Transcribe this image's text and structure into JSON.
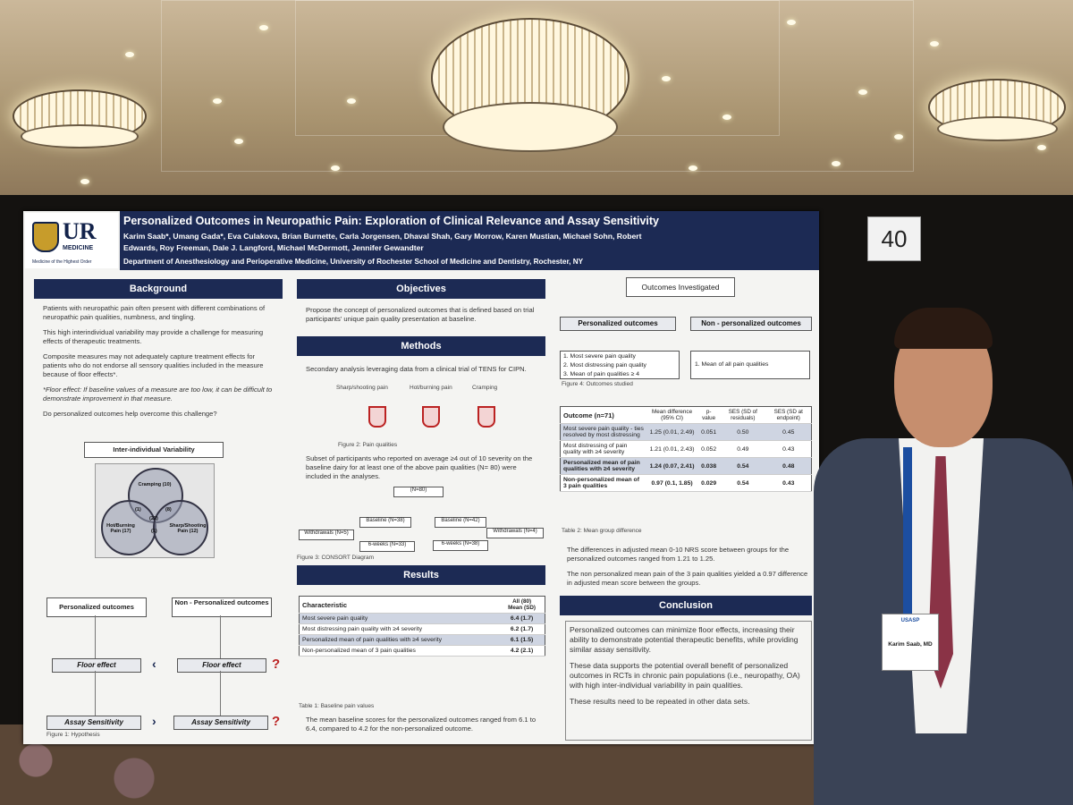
{
  "poster": {
    "title": "Personalized Outcomes in Neuropathic Pain: Exploration of Clinical Relevance and Assay Sensitivity",
    "authors": "Karim Saab*, Umang Gada*, Eva Culakova, Brian Burnette, Carla Jorgensen, Dhaval Shah, Gary Morrow, Karen Mustian, Michael Sohn, Robert Edwards, Roy Freeman, Dale J. Langford, Michael McDermott, Jennifer Gewandter",
    "department": "Department of Anesthesiology and Perioperative Medicine, University of Rochester School of Medicine and Dentistry, Rochester, NY",
    "logo": {
      "mark": "UR",
      "name": "MEDICINE",
      "motto": "Medicine of the Highest Order"
    },
    "board_number": "40",
    "background": {
      "heading": "Background",
      "bullets": [
        "Patients with neuropathic pain often present with different combinations of neuropathic pain qualities, numbness, and tingling.",
        "This high interindividual variability may provide a challenge for measuring effects of therapeutic treatments.",
        "Composite measures may not adequately capture treatment effects for patients who do not endorse all sensory qualities included in the measure because of floor effects*.",
        "*Floor effect: If baseline values of a measure are too low, it can be difficult to demonstrate improvement in that measure.",
        "Do personalized outcomes help overcome this challenge?"
      ]
    },
    "hypothesis": {
      "venn_title": "Inter-individual Variability",
      "venn_labels": [
        "Cramping (10)",
        "Hot/Burning Pain (17)",
        "Sharp/Shooting Pain (12)"
      ],
      "venn_counts": [
        "(1)",
        "(8)",
        "(22)",
        "(1)"
      ],
      "left_outcome": "Personalized outcomes",
      "right_outcome": "Non - Personalized outcomes",
      "floor_left": "Floor effect",
      "floor_right": "Floor effect",
      "assay_left": "Assay Sensitivity",
      "assay_right": "Assay Sensitivity",
      "question_mark": "?",
      "caption": "Figure 1: Hypothesis"
    },
    "objectives": {
      "heading": "Objectives",
      "bullets": [
        "Propose the concept of personalized outcomes that is defined based on trial participants' unique pain quality presentation at baseline."
      ]
    },
    "methods": {
      "heading": "Methods",
      "bullets": [
        "Secondary analysis leveraging data from a clinical trial of TENS for CIPN.",
        "Subset of participants who reported on average ≥4 out of 10 severity on the baseline dairy for at least one of the above pain qualities (N= 80) were included in the analyses."
      ],
      "pain_labels": [
        "Sharp/shooting pain",
        "Hot/burning pain",
        "Cramping"
      ],
      "fig2_caption": "Figure 2: Pain qualities",
      "consort": {
        "top": "(N=80)",
        "baseline_left": "Baseline (N=38)",
        "baseline_right": "Baseline (N=42)",
        "withdraw_left": "Withdrawals (N=5)",
        "withdraw_right": "Withdrawals (N=4)",
        "week_left": "6-weeks (N=33)",
        "week_right": "6-weeks (N=38)",
        "caption": "Figure 3: CONSORT Diagram"
      }
    },
    "results": {
      "heading": "Results",
      "col_characteristic": "Characteristic",
      "col_all": "All (80)",
      "col_mean": "Mean (SD)",
      "rows": [
        {
          "label": "Most severe pain quality",
          "value": "6.4 (1.7)"
        },
        {
          "label": "Most distressing pain quality with ≥4 severity",
          "value": "6.2 (1.7)"
        },
        {
          "label": "Personalized mean of pain qualities with ≥4 severity",
          "value": "6.1 (1.5)"
        },
        {
          "label": "Non-personalized mean of 3 pain qualities",
          "value": "4.2 (2.1)"
        }
      ],
      "caption": "Table 1: Baseline pain values",
      "bullet": "The mean baseline scores for the personalized outcomes ranged from 6.1 to 6.4, compared to 4.2 for the non-personalized outcome."
    },
    "outcomes": {
      "title": "Outcomes Investigated",
      "personalized": "Personalized outcomes",
      "non_personalized": "Non - personalized outcomes",
      "personalized_items": [
        "1.   Most severe pain quality",
        "2.   Most distressing pain quality",
        "3.   Mean of pain qualities ≥ 4"
      ],
      "non_personalized_items": [
        "1.   Mean of all pain qualities"
      ],
      "caption": "Figure 4: Outcomes studied"
    },
    "mean_table": {
      "headers": [
        "Outcome (n=71)",
        "Mean difference (95% CI)",
        "p-value",
        "SES (SD of residuals)",
        "SES (SD at endpoint)"
      ],
      "rows": [
        [
          "Most severe pain quality - ties resolved by most distressing",
          "1.25 (0.01, 2.49)",
          "0.051",
          "0.50",
          "0.45"
        ],
        [
          "Most distressing of pain quality with ≥4 severity",
          "1.21 (0.01, 2.43)",
          "0.052",
          "0.49",
          "0.43"
        ],
        [
          "Personalized mean of pain qualities with ≥4 severity",
          "1.24 (0.07, 2.41)",
          "0.038",
          "0.54",
          "0.48"
        ],
        [
          "Non-personalized mean of 3 pain qualities",
          "0.97 (0.1, 1.85)",
          "0.029",
          "0.54",
          "0.43"
        ]
      ],
      "caption": "Table 2: Mean group difference",
      "bullets": [
        "The differences in adjusted mean 0-10 NRS score between groups for the personalized outcomes ranged from 1.21 to 1.25.",
        "The non personalized mean pain of the 3 pain qualities yielded a 0.97 difference in adjusted mean score between the groups."
      ]
    },
    "conclusion": {
      "heading": "Conclusion",
      "bullets": [
        "Personalized outcomes can minimize floor effects, increasing their ability to demonstrate potential therapeutic benefits, while providing similar assay sensitivity.",
        "These data supports the potential overall benefit of personalized outcomes in RCTs in chronic pain populations (i.e., neuropathy, OA) with high inter-individual variability in pain qualities.",
        "These results need to be repeated in other data sets."
      ]
    },
    "badge": {
      "org": "USASP",
      "name": "Karim Saab, MD"
    }
  }
}
